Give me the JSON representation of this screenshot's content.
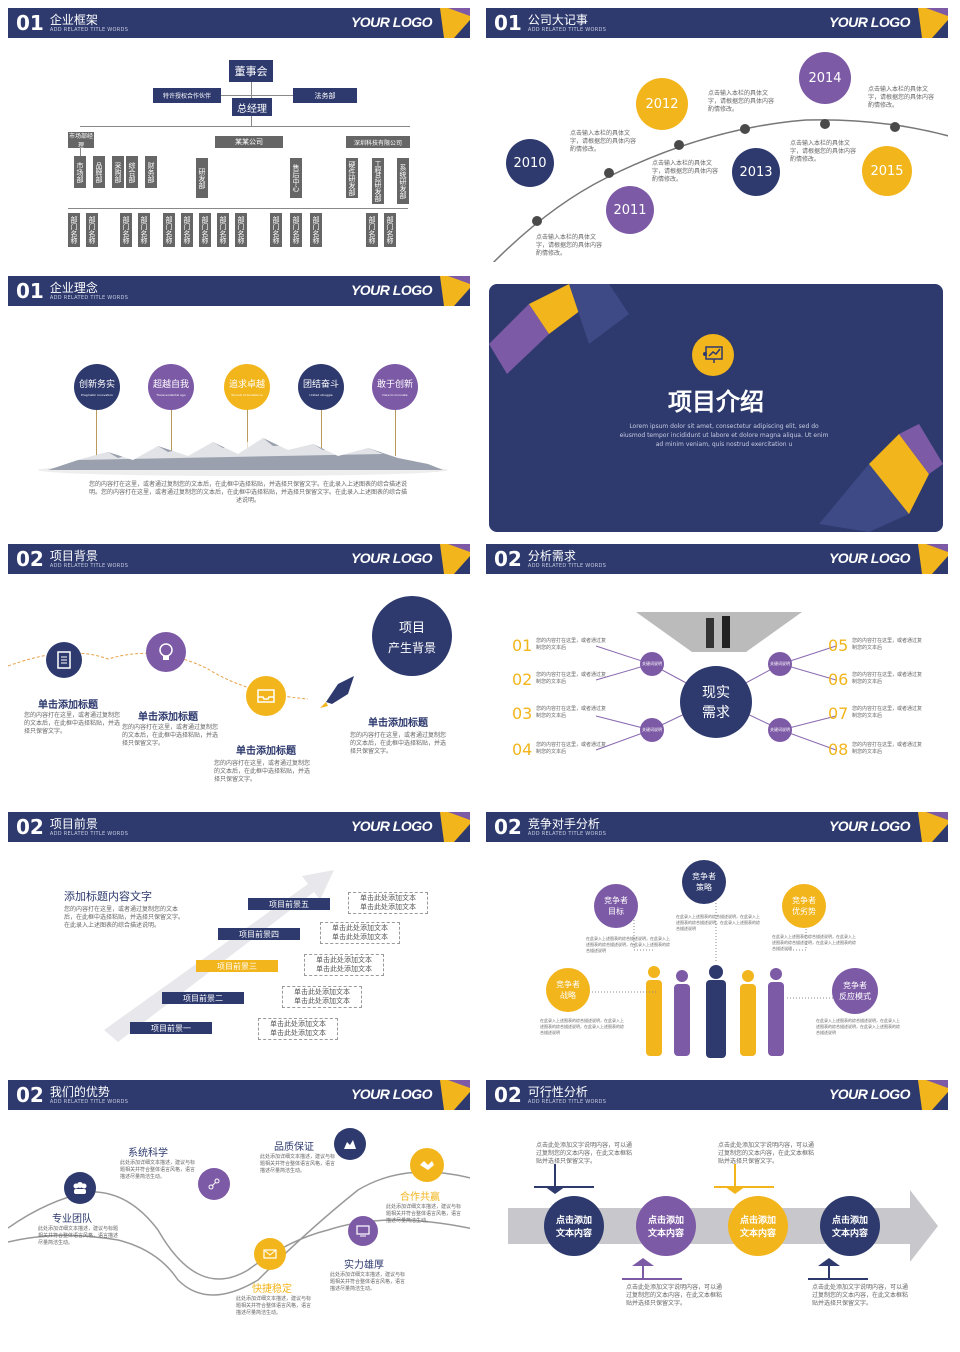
{
  "logo": "YOUR LOGO",
  "sub": "ADD RELATED TITLE WORDS",
  "colors": {
    "navy": "#2e3a6e",
    "purple": "#7d5aa6",
    "yellow": "#f2b51c",
    "gray": "#666666"
  },
  "s1": {
    "num": "01",
    "title": "企业框架",
    "board": "董事会",
    "gm": "总经理",
    "left_dept": "特许授权合作伙伴",
    "right_dept": "法务部",
    "co1": "某某公司",
    "co2": "深圳科技有限公司",
    "depts": [
      "市场部经理",
      "市场部",
      "品牌部",
      "采购部",
      "综合部",
      "财务部",
      "研发部",
      "售后中心",
      "研发中心",
      "硬件研发部",
      "工程总研发部",
      "系统研发部"
    ],
    "sub_label": "部门名称"
  },
  "s2": {
    "num": "01",
    "title": "公司大记事",
    "years": [
      "2010",
      "2011",
      "2012",
      "2013",
      "2014",
      "2015"
    ],
    "desc": "点击输入本栏的具体文字，请根据您的具体内容酌情修改。"
  },
  "s3": {
    "num": "01",
    "title": "企业理念",
    "items": [
      {
        "cn": "创新务实",
        "en": "Pragmatic innovation"
      },
      {
        "cn": "超越自我",
        "en": "Transcendental ego"
      },
      {
        "cn": "追求卓越",
        "en": "Pursuit of excellence"
      },
      {
        "cn": "团结奋斗",
        "en": "United struggle"
      },
      {
        "cn": "敢于创新",
        "en": "Dare to innovate"
      }
    ],
    "para": "您的内容打在这里，或者通过复制您的文本后，在此框中选择粘贴，并选择只保留文字。在此录入上述图表的综合描述说明。您的内容打在这里，或者通过复制您的文本后，在此框中选择粘贴，并选择只保留文字。在此录入上述图表的综合描述说明。"
  },
  "s4": {
    "title": "项目介绍",
    "en": "Lorem ipsum dolor sit amet, consectetur adipiscing elit, sed do eiusmod tempor incididunt ut labore et dolore magna aliqua. Ut enim ad minim veniam, quis nostrud exercitation u"
  },
  "s5": {
    "num": "02",
    "title": "项目背景",
    "heading": "单击添加标题",
    "desc": "您的内容打在这里，或者通过复制您的文本后，在此框中选择粘贴，并选择只保留文字。",
    "bubble1": "项目",
    "bubble2": "产生背景"
  },
  "s6": {
    "num": "02",
    "title": "分析需求",
    "nums": [
      "01",
      "02",
      "03",
      "04",
      "05",
      "06",
      "07",
      "08"
    ],
    "desc": "您的内容打在这里，或者通过复制您的文本后",
    "center1": "现实",
    "center2": "需求",
    "kw": "关键词说明"
  },
  "s7": {
    "num": "02",
    "title": "项目前景",
    "heading": "添加标题内容文字",
    "para": "您的内容打在这里，或者通过复制您的文本后，在此框中选择粘贴，并选择只保留文字。在此录入上述图表的综合描述说明。",
    "steps": [
      "项目前景一",
      "项目前景二",
      "项目前景三",
      "项目前景四",
      "项目前景五"
    ],
    "note1": "单击此处添加文本",
    "note2": "单击此处添加文本"
  },
  "s8": {
    "num": "02",
    "title": "竞争对手分析",
    "items": [
      {
        "a": "竞争者",
        "b": "目标"
      },
      {
        "a": "竞争者",
        "b": "策略"
      },
      {
        "a": "竞争者",
        "b": "优劣势"
      },
      {
        "a": "竞争者",
        "b": "战略"
      },
      {
        "a": "竞争者",
        "b": "反应模式"
      }
    ],
    "desc": "在此录入上述图表的综合描述说明，在此录入上述图表的综合描述说明，在此录入上述图表的综合描述说明"
  },
  "s9": {
    "num": "02",
    "title": "我们的优势",
    "items": [
      "专业团队",
      "系统科学",
      "品质保证",
      "快捷稳定",
      "实力雄厚",
      "合作共赢"
    ],
    "desc": "此处添加详细文本描述，建议与标题相关并符合整体语言风格，语言描述尽量简洁生动。"
  },
  "s10": {
    "num": "02",
    "title": "可行性分析",
    "circle1": "点击添加",
    "circle2": "文本内容",
    "desc": "点击此处添加文字说明内容，可以通过复制您的文本内容，在此文本框粘贴并选择只保留文字。"
  }
}
